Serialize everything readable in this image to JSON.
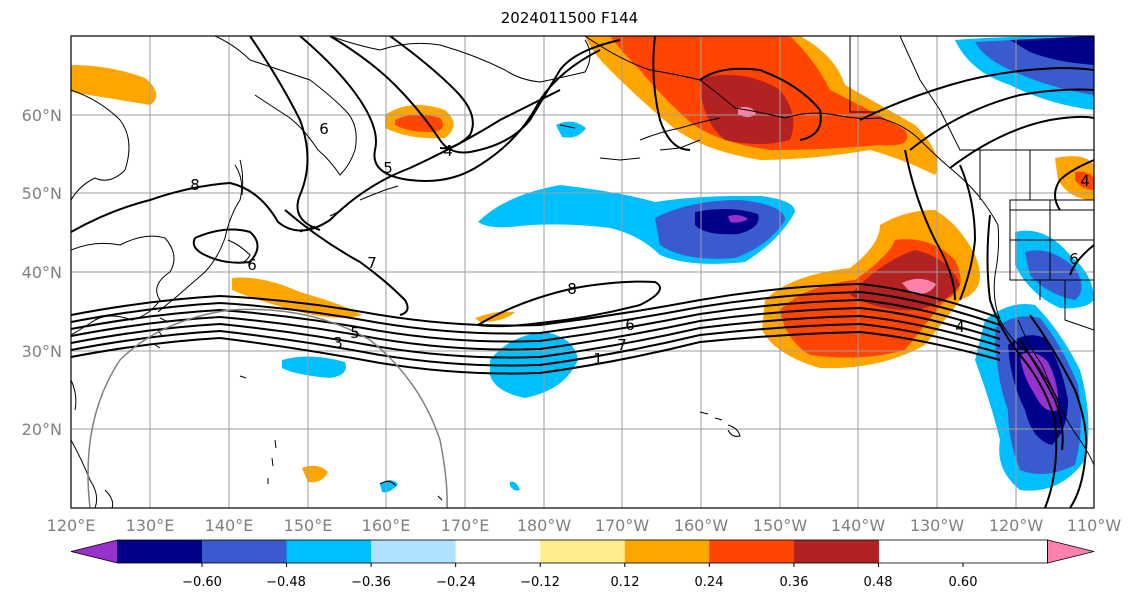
{
  "title": "2024011500 F144",
  "map": {
    "lat_labels": [
      "60°N",
      "50°N",
      "40°N",
      "30°N",
      "20°N"
    ],
    "lon_labels": [
      "120°E",
      "130°E",
      "140°E",
      "150°E",
      "160°E",
      "170°E",
      "180°W",
      "170°W",
      "160°W",
      "150°W",
      "140°W",
      "130°W",
      "120°W",
      "110°W"
    ],
    "contour_labels": [
      "8",
      "6",
      "5",
      "4",
      "6",
      "7",
      "8",
      "6",
      "3",
      "5",
      "1",
      "7",
      "4",
      "4",
      "6"
    ]
  },
  "colorbar": {
    "labels": [
      "−0.60",
      "−0.48",
      "−0.36",
      "−0.24",
      "−0.12",
      "0.12",
      "0.24",
      "0.36",
      "0.48",
      "0.60"
    ],
    "colors": [
      "#9932cc",
      "#00008b",
      "#3a5bcd",
      "#00bfff",
      "#b0e2ff",
      "#ffffff",
      "#ffec8b",
      "#ffa500",
      "#ff4500",
      "#b22222",
      "#ff82ab"
    ]
  }
}
